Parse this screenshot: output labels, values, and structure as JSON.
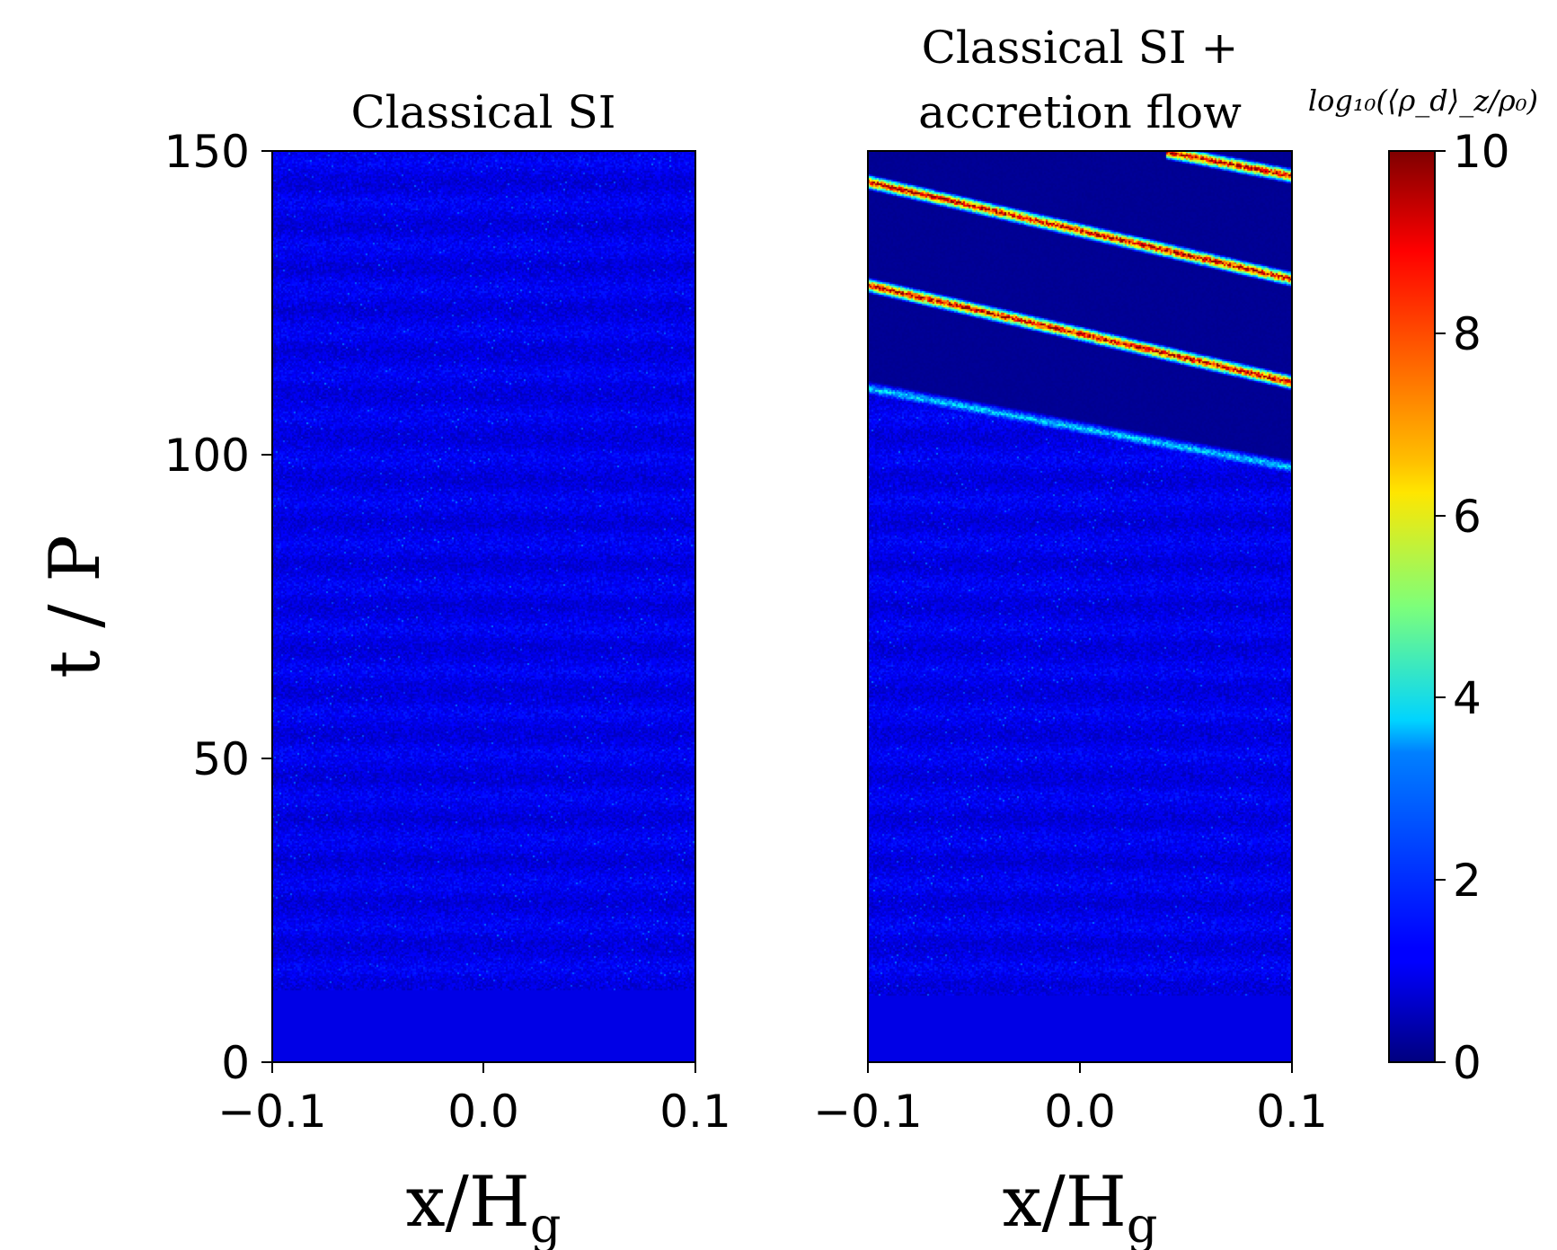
{
  "chart_data": [
    {
      "type": "heatmap",
      "title": "Classical SI",
      "xlabel": "x/H",
      "xlabel_sub": "g",
      "ylabel": "t / P",
      "xlim": [
        -0.1,
        0.1
      ],
      "ylim": [
        0,
        150
      ],
      "xticks": [
        "−0.1",
        "0.0",
        "0.1"
      ],
      "yticks": [
        "0",
        "50",
        "100",
        "150"
      ],
      "features": {
        "uniform_initial_band_until_t": 12,
        "background_value": 1.0,
        "max_value": 2.5,
        "filaments": []
      }
    },
    {
      "type": "heatmap",
      "title_line1": "Classical SI +",
      "title_line2": "accretion flow",
      "xlabel": "x/H",
      "xlabel_sub": "g",
      "xlim": [
        -0.1,
        0.1
      ],
      "ylim": [
        0,
        150
      ],
      "xticks": [
        "−0.1",
        "0.0",
        "0.1"
      ],
      "features": {
        "uniform_initial_band_until_t": 11,
        "background_value": 1.0,
        "depleted_value_above_t": 111,
        "filaments": [
          {
            "x_start": -0.1,
            "t_start": 111,
            "x_end": 0.1,
            "t_end": 98,
            "peak": 4.5
          },
          {
            "x_start": -0.1,
            "t_start": 128,
            "x_end": 0.1,
            "t_end": 112,
            "peak": 10
          },
          {
            "x_start": -0.1,
            "t_start": 145,
            "x_end": 0.1,
            "t_end": 129,
            "peak": 10
          },
          {
            "x_start": 0.04,
            "t_start": 150,
            "x_end": 0.1,
            "t_end": 146,
            "peak": 10
          }
        ]
      }
    }
  ],
  "colorbar": {
    "label": "log₁₀(⟨ρ_d⟩_z/ρ₀)",
    "label_parts": {
      "lead": "log",
      "sub1": "10",
      "mid1": "(⟨ρ",
      "sub2": "d",
      "mid2": "⟩",
      "sub3": "z",
      "mid3": "/ρ",
      "sub4": "0",
      "tail": ")"
    },
    "range": [
      0,
      10
    ],
    "ticks": [
      "0",
      "2",
      "4",
      "6",
      "8",
      "10"
    ],
    "colormap": "jet"
  }
}
